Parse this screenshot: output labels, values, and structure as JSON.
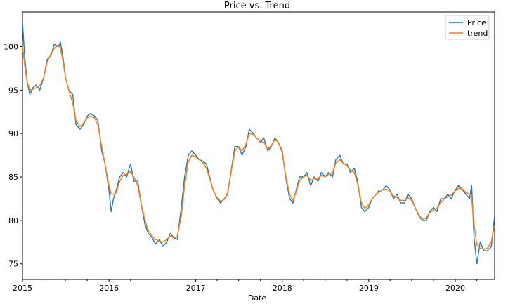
{
  "chart_data": {
    "type": "line",
    "title": "Price vs. Trend",
    "xlabel": "Date",
    "ylabel": "",
    "xlim": [
      "2015-01-01",
      "2020-06-15"
    ],
    "ylim": [
      73.2,
      104.0
    ],
    "x_ticks": [
      "2015",
      "2016",
      "2017",
      "2018",
      "2019",
      "2020"
    ],
    "y_ticks": [
      75,
      80,
      85,
      90,
      95,
      100
    ],
    "grid": false,
    "legend_position": "top-right",
    "series": [
      {
        "name": "Price",
        "color": "#1f77b4",
        "points": [
          [
            "2015-01-01",
            102.8
          ],
          [
            "2015-01-10",
            99.0
          ],
          [
            "2015-01-20",
            96.0
          ],
          [
            "2015-02-01",
            94.5
          ],
          [
            "2015-02-15",
            95.3
          ],
          [
            "2015-03-01",
            95.6
          ],
          [
            "2015-03-15",
            95.0
          ],
          [
            "2015-04-01",
            96.5
          ],
          [
            "2015-04-15",
            98.5
          ],
          [
            "2015-05-01",
            99.0
          ],
          [
            "2015-05-15",
            100.3
          ],
          [
            "2015-06-01",
            100.0
          ],
          [
            "2015-06-10",
            100.5
          ],
          [
            "2015-06-20",
            99.0
          ],
          [
            "2015-07-01",
            96.5
          ],
          [
            "2015-07-15",
            95.0
          ],
          [
            "2015-08-01",
            94.5
          ],
          [
            "2015-08-15",
            91.0
          ],
          [
            "2015-09-01",
            90.5
          ],
          [
            "2015-09-15",
            91.0
          ],
          [
            "2015-10-01",
            92.0
          ],
          [
            "2015-10-15",
            92.3
          ],
          [
            "2015-11-01",
            92.0
          ],
          [
            "2015-11-15",
            91.5
          ],
          [
            "2015-12-01",
            88.0
          ],
          [
            "2015-12-15",
            86.5
          ],
          [
            "2016-01-01",
            83.5
          ],
          [
            "2016-01-10",
            81.0
          ],
          [
            "2016-01-20",
            82.5
          ],
          [
            "2016-02-01",
            83.5
          ],
          [
            "2016-02-15",
            85.0
          ],
          [
            "2016-03-01",
            85.5
          ],
          [
            "2016-03-15",
            85.0
          ],
          [
            "2016-04-01",
            86.5
          ],
          [
            "2016-04-15",
            84.5
          ],
          [
            "2016-05-01",
            84.5
          ],
          [
            "2016-05-15",
            82.0
          ],
          [
            "2016-06-01",
            79.5
          ],
          [
            "2016-06-15",
            78.5
          ],
          [
            "2016-07-01",
            78.0
          ],
          [
            "2016-07-15",
            77.3
          ],
          [
            "2016-08-01",
            77.8
          ],
          [
            "2016-08-15",
            77.0
          ],
          [
            "2016-09-01",
            77.5
          ],
          [
            "2016-09-15",
            78.5
          ],
          [
            "2016-10-01",
            78.0
          ],
          [
            "2016-10-15",
            77.8
          ],
          [
            "2016-11-01",
            81.5
          ],
          [
            "2016-11-15",
            85.0
          ],
          [
            "2016-12-01",
            87.5
          ],
          [
            "2016-12-15",
            88.0
          ],
          [
            "2017-01-01",
            87.5
          ],
          [
            "2017-01-15",
            87.0
          ],
          [
            "2017-02-01",
            86.8
          ],
          [
            "2017-02-15",
            86.5
          ],
          [
            "2017-03-01",
            85.0
          ],
          [
            "2017-03-15",
            83.5
          ],
          [
            "2017-04-01",
            82.5
          ],
          [
            "2017-04-15",
            82.0
          ],
          [
            "2017-05-01",
            82.5
          ],
          [
            "2017-05-15",
            83.0
          ],
          [
            "2017-06-01",
            86.0
          ],
          [
            "2017-06-15",
            88.5
          ],
          [
            "2017-07-01",
            88.5
          ],
          [
            "2017-07-15",
            87.5
          ],
          [
            "2017-08-01",
            88.5
          ],
          [
            "2017-08-15",
            90.5
          ],
          [
            "2017-09-01",
            90.0
          ],
          [
            "2017-09-15",
            89.5
          ],
          [
            "2017-10-01",
            89.0
          ],
          [
            "2017-10-15",
            89.5
          ],
          [
            "2017-11-01",
            88.0
          ],
          [
            "2017-11-15",
            88.5
          ],
          [
            "2017-12-01",
            89.5
          ],
          [
            "2017-12-15",
            89.0
          ],
          [
            "2018-01-01",
            88.0
          ],
          [
            "2018-01-15",
            85.0
          ],
          [
            "2018-02-01",
            82.5
          ],
          [
            "2018-02-15",
            82.0
          ],
          [
            "2018-03-01",
            83.5
          ],
          [
            "2018-03-15",
            85.0
          ],
          [
            "2018-04-01",
            85.0
          ],
          [
            "2018-04-15",
            85.5
          ],
          [
            "2018-05-01",
            84.0
          ],
          [
            "2018-05-15",
            85.0
          ],
          [
            "2018-06-01",
            84.5
          ],
          [
            "2018-06-15",
            85.5
          ],
          [
            "2018-07-01",
            85.0
          ],
          [
            "2018-07-15",
            85.5
          ],
          [
            "2018-08-01",
            85.0
          ],
          [
            "2018-08-15",
            87.0
          ],
          [
            "2018-09-01",
            87.5
          ],
          [
            "2018-09-15",
            86.5
          ],
          [
            "2018-10-01",
            86.5
          ],
          [
            "2018-10-15",
            85.5
          ],
          [
            "2018-11-01",
            86.0
          ],
          [
            "2018-11-15",
            84.5
          ],
          [
            "2018-12-01",
            81.5
          ],
          [
            "2018-12-15",
            81.0
          ],
          [
            "2019-01-01",
            81.5
          ],
          [
            "2019-01-15",
            82.5
          ],
          [
            "2019-02-01",
            83.0
          ],
          [
            "2019-02-15",
            83.5
          ],
          [
            "2019-03-01",
            83.5
          ],
          [
            "2019-03-15",
            84.0
          ],
          [
            "2019-04-01",
            83.5
          ],
          [
            "2019-04-15",
            82.5
          ],
          [
            "2019-05-01",
            83.0
          ],
          [
            "2019-05-15",
            82.0
          ],
          [
            "2019-06-01",
            82.0
          ],
          [
            "2019-06-15",
            83.0
          ],
          [
            "2019-07-01",
            82.5
          ],
          [
            "2019-07-15",
            81.5
          ],
          [
            "2019-08-01",
            80.5
          ],
          [
            "2019-08-15",
            80.0
          ],
          [
            "2019-09-01",
            80.0
          ],
          [
            "2019-09-15",
            81.0
          ],
          [
            "2019-10-01",
            81.5
          ],
          [
            "2019-10-15",
            81.0
          ],
          [
            "2019-11-01",
            82.5
          ],
          [
            "2019-11-15",
            82.5
          ],
          [
            "2019-12-01",
            83.0
          ],
          [
            "2019-12-15",
            82.5
          ],
          [
            "2020-01-01",
            83.5
          ],
          [
            "2020-01-15",
            84.0
          ],
          [
            "2020-02-01",
            83.5
          ],
          [
            "2020-02-15",
            83.0
          ],
          [
            "2020-03-01",
            82.5
          ],
          [
            "2020-03-10",
            84.0
          ],
          [
            "2020-03-20",
            78.0
          ],
          [
            "2020-04-01",
            75.0
          ],
          [
            "2020-04-15",
            77.5
          ],
          [
            "2020-05-01",
            76.5
          ],
          [
            "2020-05-15",
            76.5
          ],
          [
            "2020-06-01",
            77.0
          ],
          [
            "2020-06-15",
            80.5
          ]
        ]
      },
      {
        "name": "trend",
        "color": "#ff7f0e",
        "points": [
          [
            "2015-01-01",
            100.0
          ],
          [
            "2015-01-10",
            98.0
          ],
          [
            "2015-01-20",
            96.0
          ],
          [
            "2015-02-01",
            95.0
          ],
          [
            "2015-02-15",
            95.1
          ],
          [
            "2015-03-01",
            95.3
          ],
          [
            "2015-03-15",
            95.5
          ],
          [
            "2015-04-01",
            96.5
          ],
          [
            "2015-04-15",
            98.2
          ],
          [
            "2015-05-01",
            99.2
          ],
          [
            "2015-05-15",
            99.8
          ],
          [
            "2015-06-01",
            100.2
          ],
          [
            "2015-06-10",
            99.8
          ],
          [
            "2015-06-20",
            98.5
          ],
          [
            "2015-07-01",
            96.5
          ],
          [
            "2015-07-15",
            95.0
          ],
          [
            "2015-08-01",
            93.5
          ],
          [
            "2015-08-15",
            91.5
          ],
          [
            "2015-09-01",
            90.8
          ],
          [
            "2015-09-15",
            91.2
          ],
          [
            "2015-10-01",
            91.8
          ],
          [
            "2015-10-15",
            92.0
          ],
          [
            "2015-11-01",
            91.8
          ],
          [
            "2015-11-15",
            91.0
          ],
          [
            "2015-12-01",
            88.5
          ],
          [
            "2015-12-15",
            86.5
          ],
          [
            "2016-01-01",
            84.0
          ],
          [
            "2016-01-10",
            83.0
          ],
          [
            "2016-01-20",
            83.0
          ],
          [
            "2016-02-01",
            83.2
          ],
          [
            "2016-02-15",
            84.5
          ],
          [
            "2016-03-01",
            85.2
          ],
          [
            "2016-03-15",
            85.3
          ],
          [
            "2016-04-01",
            85.6
          ],
          [
            "2016-04-15",
            85.0
          ],
          [
            "2016-05-01",
            84.0
          ],
          [
            "2016-05-15",
            82.0
          ],
          [
            "2016-06-01",
            80.0
          ],
          [
            "2016-06-15",
            78.8
          ],
          [
            "2016-07-01",
            78.2
          ],
          [
            "2016-07-15",
            77.8
          ],
          [
            "2016-08-01",
            77.6
          ],
          [
            "2016-08-15",
            77.5
          ],
          [
            "2016-09-01",
            77.8
          ],
          [
            "2016-09-15",
            78.2
          ],
          [
            "2016-10-01",
            78.0
          ],
          [
            "2016-10-15",
            78.2
          ],
          [
            "2016-11-01",
            80.5
          ],
          [
            "2016-11-15",
            84.0
          ],
          [
            "2016-12-01",
            86.8
          ],
          [
            "2016-12-15",
            87.5
          ],
          [
            "2017-01-01",
            87.3
          ],
          [
            "2017-01-15",
            87.0
          ],
          [
            "2017-02-01",
            86.6
          ],
          [
            "2017-02-15",
            86.0
          ],
          [
            "2017-03-01",
            84.8
          ],
          [
            "2017-03-15",
            83.5
          ],
          [
            "2017-04-01",
            82.6
          ],
          [
            "2017-04-15",
            82.2
          ],
          [
            "2017-05-01",
            82.4
          ],
          [
            "2017-05-15",
            83.2
          ],
          [
            "2017-06-01",
            85.8
          ],
          [
            "2017-06-15",
            88.0
          ],
          [
            "2017-07-01",
            88.5
          ],
          [
            "2017-07-15",
            88.0
          ],
          [
            "2017-08-01",
            88.8
          ],
          [
            "2017-08-15",
            90.0
          ],
          [
            "2017-09-01",
            89.9
          ],
          [
            "2017-09-15",
            89.5
          ],
          [
            "2017-10-01",
            89.1
          ],
          [
            "2017-10-15",
            89.0
          ],
          [
            "2017-11-01",
            88.2
          ],
          [
            "2017-11-15",
            88.6
          ],
          [
            "2017-12-01",
            89.3
          ],
          [
            "2017-12-15",
            89.0
          ],
          [
            "2018-01-01",
            87.8
          ],
          [
            "2018-01-15",
            85.2
          ],
          [
            "2018-02-01",
            83.0
          ],
          [
            "2018-02-15",
            82.3
          ],
          [
            "2018-03-01",
            83.3
          ],
          [
            "2018-03-15",
            84.6
          ],
          [
            "2018-04-01",
            85.0
          ],
          [
            "2018-04-15",
            85.2
          ],
          [
            "2018-05-01",
            84.6
          ],
          [
            "2018-05-15",
            84.8
          ],
          [
            "2018-06-01",
            84.8
          ],
          [
            "2018-06-15",
            85.2
          ],
          [
            "2018-07-01",
            85.0
          ],
          [
            "2018-07-15",
            85.3
          ],
          [
            "2018-08-01",
            85.5
          ],
          [
            "2018-08-15",
            86.6
          ],
          [
            "2018-09-01",
            87.0
          ],
          [
            "2018-09-15",
            86.6
          ],
          [
            "2018-10-01",
            86.3
          ],
          [
            "2018-10-15",
            85.8
          ],
          [
            "2018-11-01",
            85.5
          ],
          [
            "2018-11-15",
            84.2
          ],
          [
            "2018-12-01",
            82.0
          ],
          [
            "2018-12-15",
            81.4
          ],
          [
            "2019-01-01",
            81.8
          ],
          [
            "2019-01-15",
            82.5
          ],
          [
            "2019-02-01",
            83.0
          ],
          [
            "2019-02-15",
            83.3
          ],
          [
            "2019-03-01",
            83.5
          ],
          [
            "2019-03-15",
            83.6
          ],
          [
            "2019-04-01",
            83.3
          ],
          [
            "2019-04-15",
            82.8
          ],
          [
            "2019-05-01",
            82.6
          ],
          [
            "2019-05-15",
            82.3
          ],
          [
            "2019-06-01",
            82.3
          ],
          [
            "2019-06-15",
            82.6
          ],
          [
            "2019-07-01",
            82.3
          ],
          [
            "2019-07-15",
            81.5
          ],
          [
            "2019-08-01",
            80.6
          ],
          [
            "2019-08-15",
            80.1
          ],
          [
            "2019-09-01",
            80.3
          ],
          [
            "2019-09-15",
            80.9
          ],
          [
            "2019-10-01",
            81.2
          ],
          [
            "2019-10-15",
            81.4
          ],
          [
            "2019-11-01",
            82.0
          ],
          [
            "2019-11-15",
            82.5
          ],
          [
            "2019-12-01",
            82.7
          ],
          [
            "2019-12-15",
            82.9
          ],
          [
            "2020-01-01",
            83.4
          ],
          [
            "2020-01-15",
            83.7
          ],
          [
            "2020-02-01",
            83.6
          ],
          [
            "2020-02-15",
            83.2
          ],
          [
            "2020-03-01",
            83.0
          ],
          [
            "2020-03-10",
            82.5
          ],
          [
            "2020-03-20",
            79.5
          ],
          [
            "2020-04-01",
            77.2
          ],
          [
            "2020-04-15",
            76.8
          ],
          [
            "2020-05-01",
            76.7
          ],
          [
            "2020-05-15",
            76.8
          ],
          [
            "2020-06-01",
            77.5
          ],
          [
            "2020-06-15",
            79.5
          ]
        ]
      }
    ]
  }
}
